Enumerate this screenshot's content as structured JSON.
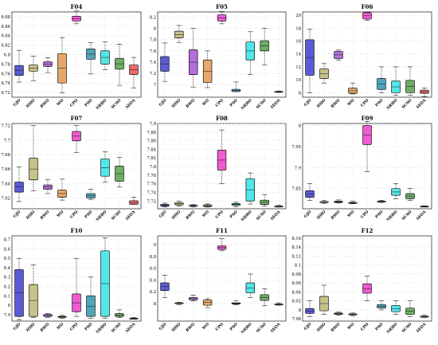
{
  "figure": {
    "categories": [
      "GJO",
      "HHO",
      "BWO",
      "WO",
      "CPO",
      "PSO",
      "NRBO",
      "SCSO",
      "AEOA"
    ],
    "box_colors": [
      "#5b5bd6",
      "#c8c28a",
      "#b56fd8",
      "#e6a86a",
      "#f05ad2",
      "#4fa6b8",
      "#52e7e7",
      "#6fae66",
      "#ef6b6b"
    ],
    "outlier_color": "#ff5a5a"
  },
  "chart_data": [
    {
      "type": "box",
      "title": "F04",
      "ylim": [
        6.71,
        6.89
      ],
      "yticks": [
        6.72,
        6.74,
        6.76,
        6.78,
        6.8,
        6.82,
        6.84,
        6.86,
        6.88
      ],
      "boxes": [
        [
          6.742,
          6.756,
          6.777,
          6.809
        ],
        [
          6.745,
          6.765,
          6.778,
          6.797
        ],
        [
          6.762,
          6.775,
          6.785,
          6.793
        ],
        [
          6.719,
          6.74,
          6.802,
          6.836
        ],
        [
          6.865,
          6.871,
          6.881,
          6.892
        ],
        [
          6.759,
          6.79,
          6.812,
          6.825
        ],
        [
          6.768,
          6.78,
          6.808,
          6.827
        ],
        [
          6.735,
          6.769,
          6.792,
          6.822
        ],
        [
          6.729,
          6.758,
          6.778,
          6.794
        ]
      ]
    },
    {
      "type": "box",
      "title": "F05",
      "ylim": [
        6.78,
        8.29
      ],
      "yticks": [
        7.0,
        7.2,
        7.4,
        7.6,
        7.8,
        8.0,
        8.2
      ],
      "boxes": [
        [
          7.06,
          7.24,
          7.5,
          7.74
        ],
        [
          7.75,
          7.83,
          7.95,
          8.05
        ],
        [
          6.96,
          7.18,
          7.62,
          8.0
        ],
        [
          6.95,
          7.04,
          7.44,
          7.6
        ],
        [
          8.08,
          8.13,
          8.24,
          8.3
        ],
        [
          6.88,
          6.88,
          6.92,
          7.05
        ],
        [
          7.18,
          7.44,
          7.76,
          7.94
        ],
        [
          7.35,
          7.6,
          7.78,
          8.0
        ],
        [
          6.87,
          6.87,
          6.88,
          6.89
        ]
      ]
    },
    {
      "type": "box",
      "title": "F06",
      "ylim": [
        7.3,
        20.5
      ],
      "yticks": [
        8,
        10,
        12,
        14,
        16,
        18,
        20
      ],
      "boxes": [
        [
          8.0,
          10.7,
          16.2,
          17.8
        ],
        [
          9.5,
          10.2,
          11.7,
          12.5
        ],
        [
          13.0,
          13.3,
          14.4,
          14.6
        ],
        [
          7.8,
          7.9,
          8.7,
          9.5
        ],
        [
          19.2,
          19.4,
          20.4,
          20.5
        ],
        [
          8.0,
          8.5,
          10.2,
          12.0
        ],
        [
          7.6,
          8.0,
          9.8,
          12.0
        ],
        [
          7.6,
          8.0,
          9.9,
          12.0
        ],
        [
          7.4,
          7.9,
          8.4,
          8.7
        ]
      ]
    },
    {
      "type": "box",
      "title": "F07",
      "ylim": [
        7.605,
        7.723
      ],
      "yticks": [
        7.62,
        7.64,
        7.66,
        7.68,
        7.7,
        7.72
      ],
      "boxes": [
        [
          7.615,
          7.628,
          7.642,
          7.663
        ],
        [
          7.63,
          7.645,
          7.675,
          7.72
        ],
        [
          7.626,
          7.632,
          7.638,
          7.645
        ],
        [
          7.617,
          7.621,
          7.631,
          7.646
        ],
        [
          7.683,
          7.699,
          7.712,
          7.72
        ],
        [
          7.618,
          7.62,
          7.626,
          7.632
        ],
        [
          7.642,
          7.65,
          7.674,
          7.684
        ],
        [
          7.635,
          7.643,
          7.664,
          7.676
        ],
        [
          7.611,
          7.611,
          7.616,
          7.621
        ]
      ]
    },
    {
      "type": "box",
      "title": "F08",
      "ylim": [
        7.702,
        7.9
      ],
      "yticks": [
        7.72,
        7.74,
        7.76,
        7.78,
        7.8,
        7.82,
        7.84,
        7.86,
        7.88,
        7.9
      ],
      "boxes": [
        [
          7.706,
          7.708,
          7.712,
          7.715
        ],
        [
          7.708,
          7.711,
          7.716,
          7.72
        ],
        [
          7.706,
          7.708,
          7.71,
          7.712
        ],
        [
          7.706,
          7.707,
          7.711,
          7.713
        ],
        [
          7.76,
          7.792,
          7.838,
          7.885
        ],
        [
          7.707,
          7.71,
          7.714,
          7.717
        ],
        [
          7.713,
          7.72,
          7.772,
          7.785
        ],
        [
          7.708,
          7.712,
          7.722,
          7.735
        ],
        [
          7.706,
          7.707,
          7.708,
          7.71
        ]
      ]
    },
    {
      "type": "box",
      "title": "F09",
      "ylim": [
        7.802,
        8.005
      ],
      "yticks": [
        7.85,
        7.9,
        7.95,
        8.0
      ],
      "boxes": [
        [
          7.822,
          7.829,
          7.845,
          7.862
        ],
        [
          7.815,
          7.817,
          7.819,
          7.822
        ],
        [
          7.816,
          7.817,
          7.82,
          7.823
        ],
        [
          7.814,
          7.815,
          7.817,
          7.82
        ],
        [
          7.89,
          7.955,
          8.0,
          8.01
        ],
        [
          7.817,
          7.818,
          7.82,
          7.822
        ],
        [
          7.826,
          7.834,
          7.85,
          7.862
        ],
        [
          7.822,
          7.826,
          7.838,
          7.85
        ],
        [
          7.806,
          7.807,
          7.808,
          7.809
        ]
      ]
    },
    {
      "type": "box",
      "title": "F10",
      "ylim": [
        7.83,
        8.74
      ],
      "yticks": [
        7.9,
        8.0,
        8.1,
        8.2,
        8.3,
        8.4,
        8.5,
        8.6,
        8.7
      ],
      "boxes": [
        [
          7.845,
          7.88,
          8.38,
          8.5
        ],
        [
          7.87,
          7.88,
          8.22,
          8.43
        ],
        [
          7.87,
          7.88,
          7.9,
          7.91
        ],
        [
          7.86,
          7.87,
          7.88,
          7.89
        ],
        [
          7.88,
          7.93,
          8.12,
          8.5
        ],
        [
          7.86,
          7.88,
          8.1,
          8.3
        ],
        [
          7.86,
          7.88,
          8.58,
          8.72
        ],
        [
          7.87,
          7.88,
          7.91,
          7.95
        ],
        [
          7.85,
          7.855,
          7.86,
          7.87
        ]
      ]
    },
    {
      "type": "box",
      "title": "F11",
      "ylim": [
        7.7,
        9.15
      ],
      "yticks": [
        8.0,
        8.2,
        8.4,
        8.6,
        8.8,
        9.0
      ],
      "boxes": [
        [
          8.1,
          8.22,
          8.35,
          8.48
        ],
        [
          7.98,
          8.0,
          8.01,
          8.02
        ],
        [
          8.04,
          8.06,
          8.1,
          8.14
        ],
        [
          7.93,
          7.97,
          8.06,
          8.08
        ],
        [
          8.9,
          8.92,
          8.98,
          9.1
        ],
        [
          7.98,
          7.99,
          8.01,
          8.05
        ],
        [
          8.1,
          8.18,
          8.35,
          8.5
        ],
        [
          7.96,
          8.05,
          8.15,
          8.25
        ],
        [
          7.97,
          7.98,
          7.99,
          8.01
        ]
      ]
    },
    {
      "type": "box",
      "title": "F12",
      "ylim": [
        7.975,
        8.165
      ],
      "yticks": [
        7.98,
        8.0,
        8.02,
        8.04,
        8.06,
        8.08,
        8.1,
        8.12,
        8.14,
        8.16
      ],
      "boxes": [
        [
          7.985,
          7.992,
          8.003,
          8.02
        ],
        [
          7.99,
          7.998,
          8.03,
          8.055
        ],
        [
          7.988,
          7.99,
          7.993,
          7.995
        ],
        [
          7.987,
          7.989,
          7.991,
          7.993
        ],
        [
          8.02,
          8.037,
          8.058,
          8.075
        ],
        [
          8.0,
          8.004,
          8.012,
          8.02
        ],
        [
          7.99,
          7.996,
          8.01,
          8.02
        ],
        [
          7.985,
          7.99,
          8.004,
          8.02
        ],
        [
          7.983,
          7.984,
          7.986,
          7.988
        ]
      ]
    }
  ]
}
